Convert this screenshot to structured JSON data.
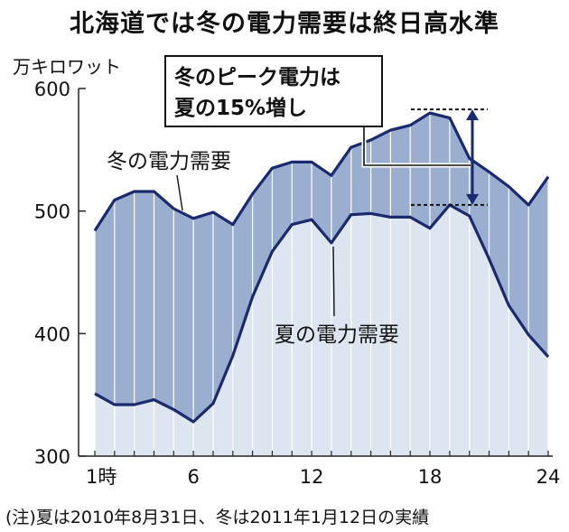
{
  "title": "北海道では冬の電力需要は終日高水準",
  "unit_label": "万キロワット",
  "note": "(注)夏は2010年8月31日、冬は2011年1月12日の実績",
  "colors": {
    "winter_fill": "#9aaed0",
    "summer_fill": "#dde6f0",
    "line": "#1a2a6e",
    "axis": "#222222"
  },
  "chart_data": {
    "type": "area",
    "x": [
      1,
      2,
      3,
      4,
      5,
      6,
      7,
      8,
      9,
      10,
      11,
      12,
      13,
      14,
      15,
      16,
      17,
      18,
      19,
      20,
      21,
      22,
      23,
      24
    ],
    "xticks": [
      {
        "value": 1,
        "label": "1時"
      },
      {
        "value": 6,
        "label": "6"
      },
      {
        "value": 12,
        "label": "12"
      },
      {
        "value": 18,
        "label": "18"
      },
      {
        "value": 24,
        "label": "24"
      }
    ],
    "yticks": [
      300,
      400,
      500,
      600
    ],
    "ylim": [
      300,
      600
    ],
    "series": [
      {
        "name": "冬の電力需要",
        "values": [
          484,
          509,
          516,
          516,
          502,
          494,
          499,
          489,
          514,
          535,
          540,
          540,
          529,
          552,
          558,
          566,
          570,
          580,
          576,
          543,
          532,
          520,
          505,
          528
        ]
      },
      {
        "name": "夏の電力需要",
        "values": [
          351,
          342,
          342,
          346,
          338,
          328,
          343,
          382,
          430,
          467,
          489,
          493,
          474,
          497,
          498,
          495,
          495,
          486,
          505,
          496,
          461,
          423,
          399,
          381
        ]
      }
    ],
    "callout": {
      "line1": "冬のピーク電力は",
      "line2": "夏の15%増し"
    }
  }
}
